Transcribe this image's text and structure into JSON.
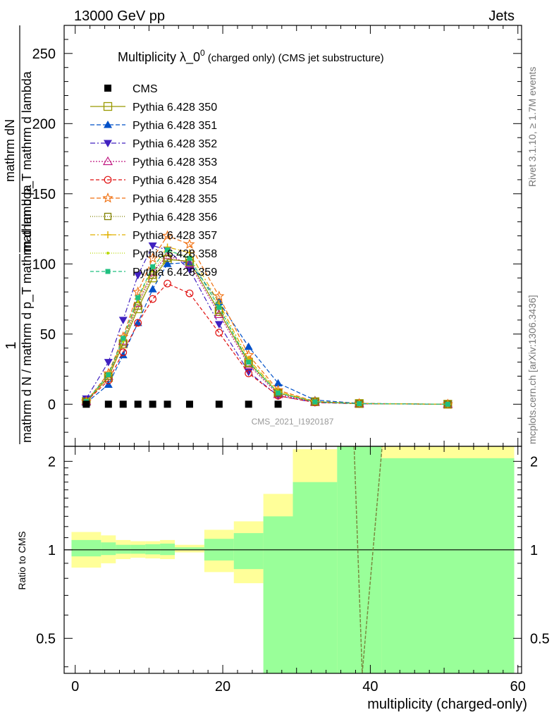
{
  "header": {
    "energy": "13000 GeV pp",
    "category": "Jets"
  },
  "side": {
    "rivet": "Rivet 3.1.10, ≥ 1.7M events",
    "mcplots": "mcplots.cern.ch [arXiv:1306.3436]"
  },
  "watermark": "CMS_2021_I1920187",
  "title": {
    "main": "Multiplicity λ_0",
    "sup": "0",
    "sub1": "(charged only)",
    "sub2": "(CMS jet substructure)"
  },
  "ylabel_top": {
    "num": "mathrm dN",
    "den": "mathrm d p_T mathrm d lambda",
    "pre_num": "1",
    "pre_den": "mathrm d N / mathrm d p_T mathrm d lambda"
  },
  "ylabel_bottom": "Ratio to CMS",
  "xlabel": "multiplicity (charged-only)",
  "colors": {
    "ref_band_inner": "#99ff99",
    "ref_band_outer": "#ffff99"
  },
  "chart_data": [
    {
      "type": "line",
      "panel": "main",
      "xlim": [
        -1.5,
        60.5
      ],
      "ylim": [
        -30,
        270
      ],
      "x_ticks": [
        0,
        20,
        40,
        60
      ],
      "y_ticks": [
        0,
        50,
        100,
        150,
        200,
        250
      ],
      "x": [
        1.5,
        4.5,
        6.5,
        8.5,
        10.5,
        12.5,
        15.5,
        19.5,
        23.5,
        27.5,
        32.5,
        38.5,
        50.5
      ],
      "series": [
        {
          "name": "CMS",
          "color": "#000000",
          "marker": "square-filled",
          "dash": "none",
          "values": [
            0,
            0,
            0,
            0,
            0,
            0,
            0,
            0,
            0,
            0,
            null,
            null,
            null
          ]
        },
        {
          "name": "Pythia 6.428 350",
          "color": "#999900",
          "marker": "square-open",
          "dash": "solid",
          "values": [
            2,
            19,
            43,
            68,
            90,
            103,
            102,
            66,
            30,
            8,
            1.8,
            0.5,
            0
          ]
        },
        {
          "name": "Pythia 6.428 351",
          "color": "#0050c8",
          "marker": "triangle-up-filled",
          "dash": "6,3",
          "values": [
            1,
            14,
            35,
            58,
            82,
            100,
            101,
            73,
            41,
            15,
            3,
            0.6,
            0
          ]
        },
        {
          "name": "Pythia 6.428 352",
          "color": "#4020c0",
          "marker": "triangle-down-filled",
          "dash": "7,3,2,3",
          "values": [
            4,
            30,
            60,
            92,
            113,
            110,
            96,
            57,
            23,
            6,
            1.2,
            0.3,
            0
          ]
        },
        {
          "name": "Pythia 6.428 353",
          "color": "#c01880",
          "marker": "triangle-up-open",
          "dash": "2,2",
          "values": [
            2,
            20,
            45,
            72,
            94,
            106,
            100,
            64,
            28,
            7,
            1.5,
            0.4,
            0
          ]
        },
        {
          "name": "Pythia 6.428 354",
          "color": "#e01010",
          "marker": "circle-open",
          "dash": "5,3",
          "values": [
            2,
            17,
            37,
            58,
            75,
            86,
            79,
            51,
            22,
            6,
            1.3,
            0.4,
            0
          ]
        },
        {
          "name": "Pythia 6.428 355",
          "color": "#f07010",
          "marker": "star-open",
          "dash": "6,3",
          "values": [
            2,
            22,
            48,
            80,
            104,
            120,
            114,
            77,
            35,
            10,
            2,
            0.5,
            0
          ]
        },
        {
          "name": "Pythia 6.428 356",
          "color": "#808000",
          "marker": "square-open-small",
          "dash": "1,2",
          "values": [
            2,
            20,
            44,
            70,
            92,
            104,
            101,
            67,
            29,
            8,
            1.7,
            0.4,
            0
          ]
        },
        {
          "name": "Pythia 6.428 357",
          "color": "#e0b000",
          "marker": "cross",
          "dash": "7,3,2,3",
          "values": [
            2,
            21,
            46,
            75,
            97,
            112,
            108,
            72,
            32,
            9,
            1.8,
            0.5,
            0
          ]
        },
        {
          "name": "Pythia 6.428 358",
          "color": "#b8d800",
          "marker": "dot",
          "dash": "1,2",
          "values": [
            2,
            20,
            45,
            73,
            95,
            109,
            105,
            70,
            31,
            9,
            1.8,
            0.5,
            0
          ]
        },
        {
          "name": "Pythia 6.428 359",
          "color": "#20c080",
          "marker": "square-filled-small",
          "dash": "5,3",
          "values": [
            2,
            21,
            47,
            76,
            98,
            110,
            104,
            69,
            30,
            8,
            1.7,
            0.4,
            0
          ]
        }
      ]
    },
    {
      "type": "area",
      "panel": "ratio",
      "ylabel": "Ratio to CMS",
      "xlim": [
        -1.5,
        60.5
      ],
      "ylim": [
        0.38,
        2.25
      ],
      "y_ticks": [
        0.5,
        1,
        2
      ],
      "x_ticks": [
        0,
        20,
        40,
        60
      ],
      "bins": [
        [
          -0.5,
          3.5
        ],
        [
          3.5,
          5.5
        ],
        [
          5.5,
          7.5
        ],
        [
          7.5,
          9.5
        ],
        [
          9.5,
          11.5
        ],
        [
          11.5,
          13.5
        ],
        [
          13.5,
          17.5
        ],
        [
          17.5,
          21.5
        ],
        [
          21.5,
          25.5
        ],
        [
          25.5,
          29.5
        ],
        [
          29.5,
          35.5
        ],
        [
          35.5,
          41.5
        ],
        [
          41.5,
          59.5
        ]
      ],
      "band_inner": [
        [
          0.95,
          1.08
        ],
        [
          0.96,
          1.06
        ],
        [
          0.97,
          1.04
        ],
        [
          0.97,
          1.04
        ],
        [
          0.965,
          1.045
        ],
        [
          0.96,
          1.05
        ],
        [
          1.0,
          1.02
        ],
        [
          0.92,
          1.09
        ],
        [
          0.86,
          1.14
        ],
        [
          0.38,
          1.3
        ],
        [
          0.38,
          1.7
        ],
        [
          0.38,
          2.25
        ],
        [
          0.38,
          2.05
        ]
      ],
      "band_outer": [
        [
          0.87,
          1.15
        ],
        [
          0.9,
          1.12
        ],
        [
          0.93,
          1.08
        ],
        [
          0.94,
          1.07
        ],
        [
          0.935,
          1.07
        ],
        [
          0.93,
          1.08
        ],
        [
          0.98,
          1.04
        ],
        [
          0.84,
          1.17
        ],
        [
          0.77,
          1.25
        ],
        [
          0.46,
          1.55
        ],
        [
          0.38,
          2.2
        ],
        [
          0.38,
          2.25
        ],
        [
          0.38,
          2.25
        ]
      ],
      "lines": [
        {
          "name": "Pythia steep",
          "color": "#7a8a40",
          "x": [
            37.8,
            38.9,
            41.6
          ],
          "values": [
            2.25,
            0.38,
            2.25
          ]
        }
      ]
    }
  ]
}
